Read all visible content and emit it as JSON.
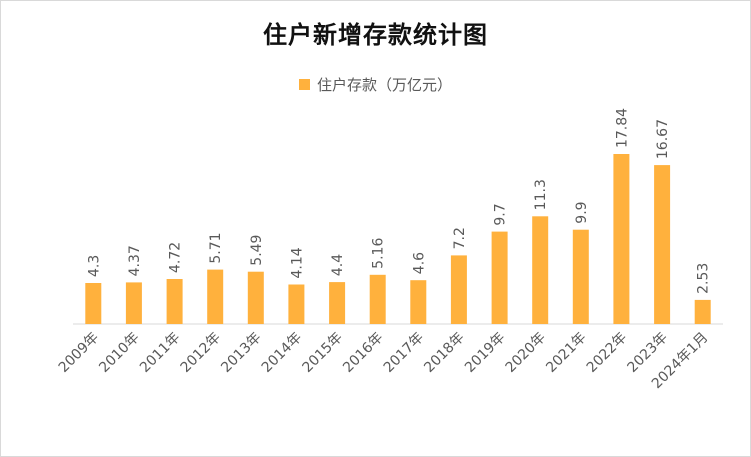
{
  "chart_data": {
    "type": "bar",
    "title": "住户新增存款统计图",
    "categories": [
      "2009年",
      "2010年",
      "2011年",
      "2012年",
      "2013年",
      "2014年",
      "2015年",
      "2016年",
      "2017年",
      "2018年",
      "2019年",
      "2020年",
      "2021年",
      "2022年",
      "2023年",
      "2024年1月"
    ],
    "series": [
      {
        "name": "住户存款（万亿元）",
        "values": [
          4.3,
          4.37,
          4.72,
          5.71,
          5.49,
          4.14,
          4.4,
          5.16,
          4.6,
          7.2,
          9.7,
          11.3,
          9.9,
          17.84,
          16.67,
          2.53
        ],
        "labels": [
          "4.3",
          "4.37",
          "4.72",
          "5.71",
          "5.49",
          "4.14",
          "4.4",
          "5.16",
          "4.6",
          "7.2",
          "9.7",
          "11.3",
          "9.9",
          "17.84",
          "16.67",
          "2.53"
        ]
      }
    ],
    "ylim": [
      0,
      18
    ],
    "grid": false,
    "legend_position": "top",
    "colors": {
      "bar": "#FFB13D",
      "axis": "#d9d9d9",
      "text": "#595959"
    }
  }
}
